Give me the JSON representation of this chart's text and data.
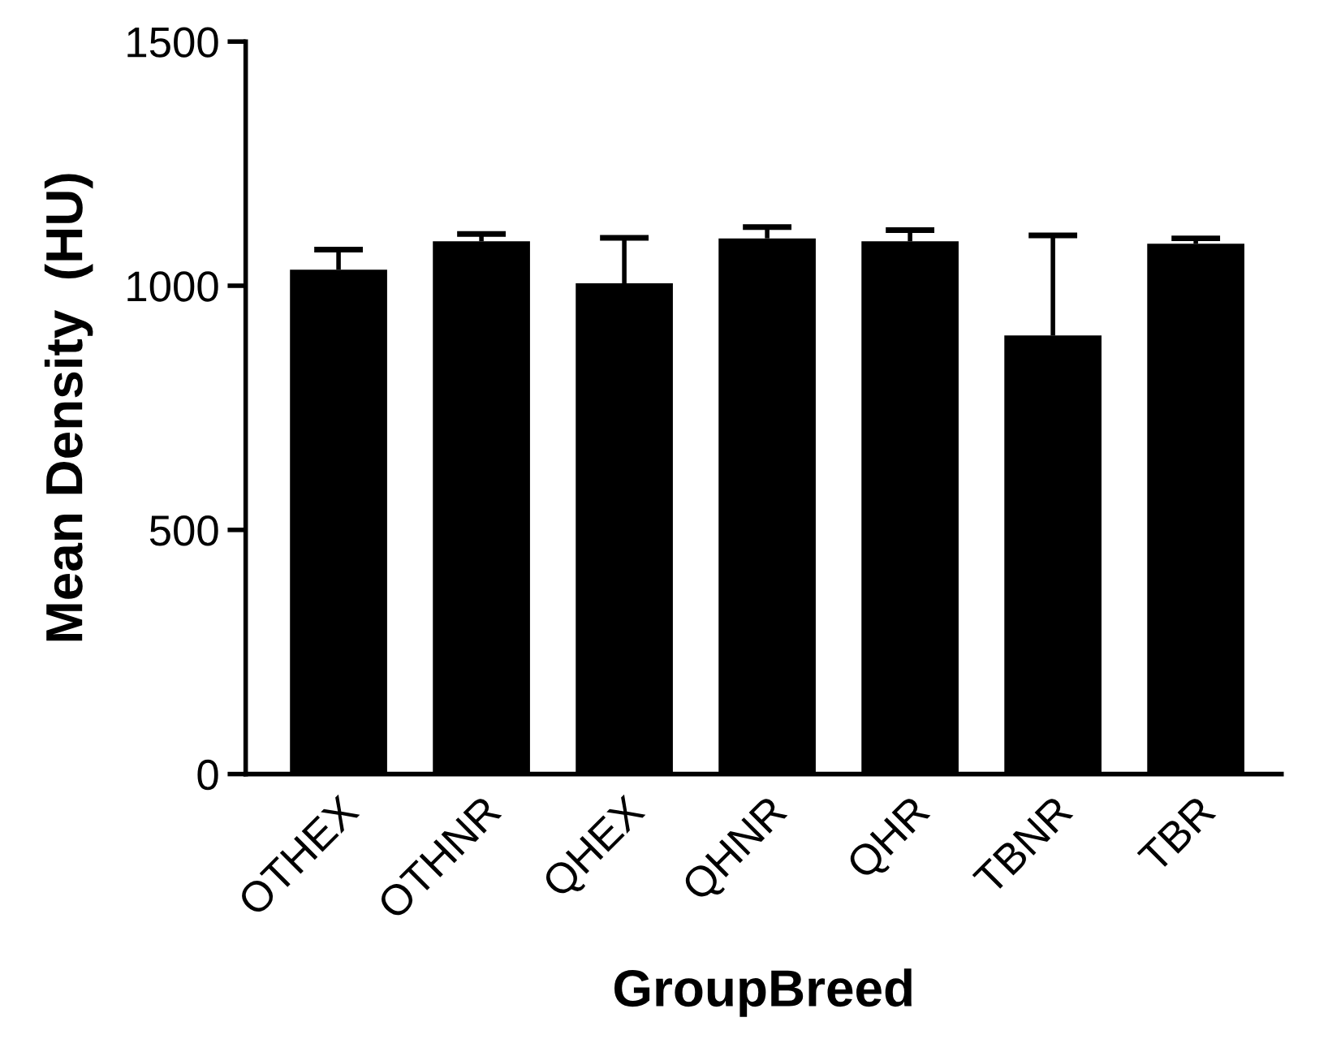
{
  "chart_data": {
    "type": "bar",
    "xlabel": "GroupBreed",
    "ylabel": "Mean Density  (HU)",
    "categories": [
      "OTHEX",
      "OTHNR",
      "QHEX",
      "QHNR",
      "QHR",
      "TBNR",
      "TBR"
    ],
    "values": [
      1033,
      1091,
      1005,
      1097,
      1091,
      898,
      1086
    ],
    "errors": [
      [
        1033,
        1074
      ],
      [
        1091,
        1106
      ],
      [
        1005,
        1098
      ],
      [
        1097,
        1120
      ],
      [
        1091,
        1114
      ],
      [
        898,
        1103
      ],
      [
        1086,
        1097
      ]
    ],
    "color": "#000000",
    "ylim": [
      0,
      1500
    ],
    "yticks": [
      0,
      500,
      1000,
      1500
    ],
    "grid": false,
    "legend": false
  }
}
